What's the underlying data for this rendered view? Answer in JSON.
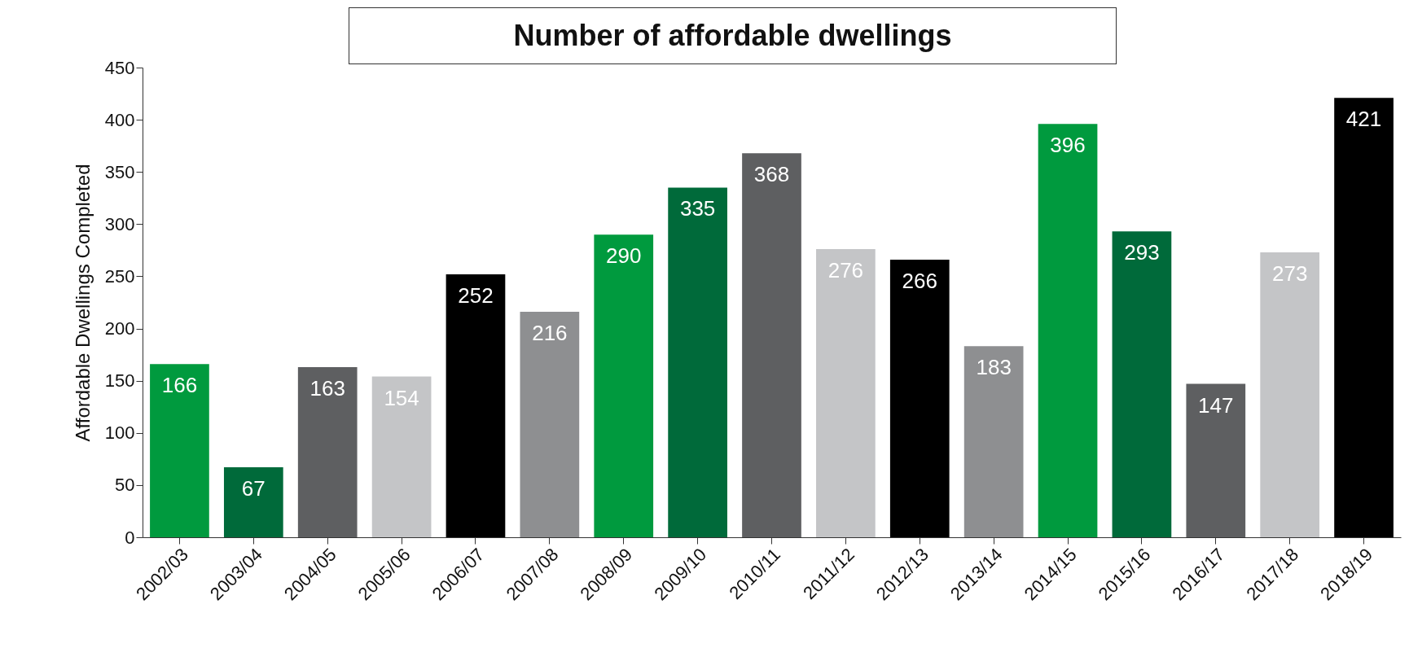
{
  "chart_data": {
    "type": "bar",
    "title": "Number of affordable dwellings",
    "ylabel": "Affordable Dwellings Completed",
    "categories": [
      "2002/03",
      "2003/04",
      "2004/05",
      "2005/06",
      "2006/07",
      "2007/08",
      "2008/09",
      "2009/10",
      "2010/11",
      "2011/12",
      "2012/13",
      "2013/14",
      "2014/15",
      "2015/16",
      "2016/17",
      "2017/18",
      "2018/19"
    ],
    "values": [
      166,
      67,
      163,
      154,
      252,
      216,
      290,
      335,
      368,
      276,
      266,
      183,
      396,
      293,
      147,
      273,
      421
    ],
    "colors": [
      "#009a3e",
      "#006a3a",
      "#5e5f61",
      "#c4c5c7",
      "#000000",
      "#8e8f91",
      "#009a3e",
      "#006a3a",
      "#5e5f61",
      "#c4c5c7",
      "#000000",
      "#8e8f91",
      "#009a3e",
      "#006a3a",
      "#5e5f61",
      "#c4c5c7",
      "#000000"
    ],
    "ylim": [
      0,
      450
    ],
    "yticks": [
      0,
      50,
      100,
      150,
      200,
      250,
      300,
      350,
      400,
      450
    ],
    "grid": false,
    "legend": false,
    "data_labels": true
  }
}
